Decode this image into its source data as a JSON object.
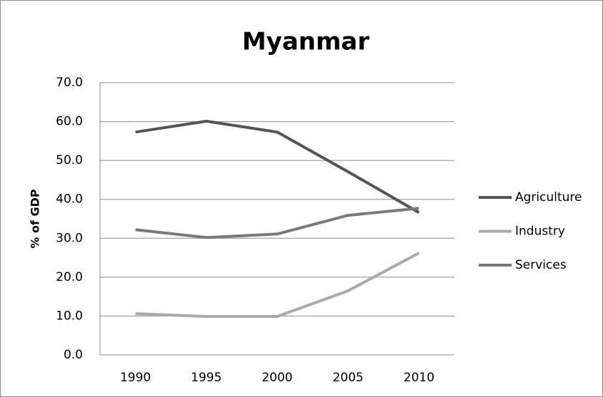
{
  "chart_data": {
    "type": "line",
    "title": "Myanmar",
    "y_label": "% of GDP",
    "categories": [
      "1990",
      "1995",
      "2000",
      "2005",
      "2010"
    ],
    "series": [
      {
        "name": "Agriculture",
        "color": "#555555",
        "values": [
          57.3,
          60.1,
          57.3,
          47.1,
          36.6
        ]
      },
      {
        "name": "Industry",
        "color": "#aaaaaa",
        "values": [
          10.6,
          9.9,
          9.9,
          16.5,
          26.2
        ]
      },
      {
        "name": "Services",
        "color": "#7a7a7a",
        "values": [
          32.2,
          30.2,
          31.1,
          35.9,
          37.7
        ]
      }
    ],
    "ylim": [
      0,
      70
    ],
    "yticks": [
      {
        "value": 0,
        "label": "0.0"
      },
      {
        "value": 10,
        "label": "10.0"
      },
      {
        "value": 20,
        "label": "20.0"
      },
      {
        "value": 30,
        "label": "30.0"
      },
      {
        "value": 40,
        "label": "40.0"
      },
      {
        "value": 50,
        "label": "50.0"
      },
      {
        "value": 60,
        "label": "60.0"
      },
      {
        "value": 70,
        "label": "70.0"
      }
    ],
    "grid": true,
    "legend": "right"
  }
}
